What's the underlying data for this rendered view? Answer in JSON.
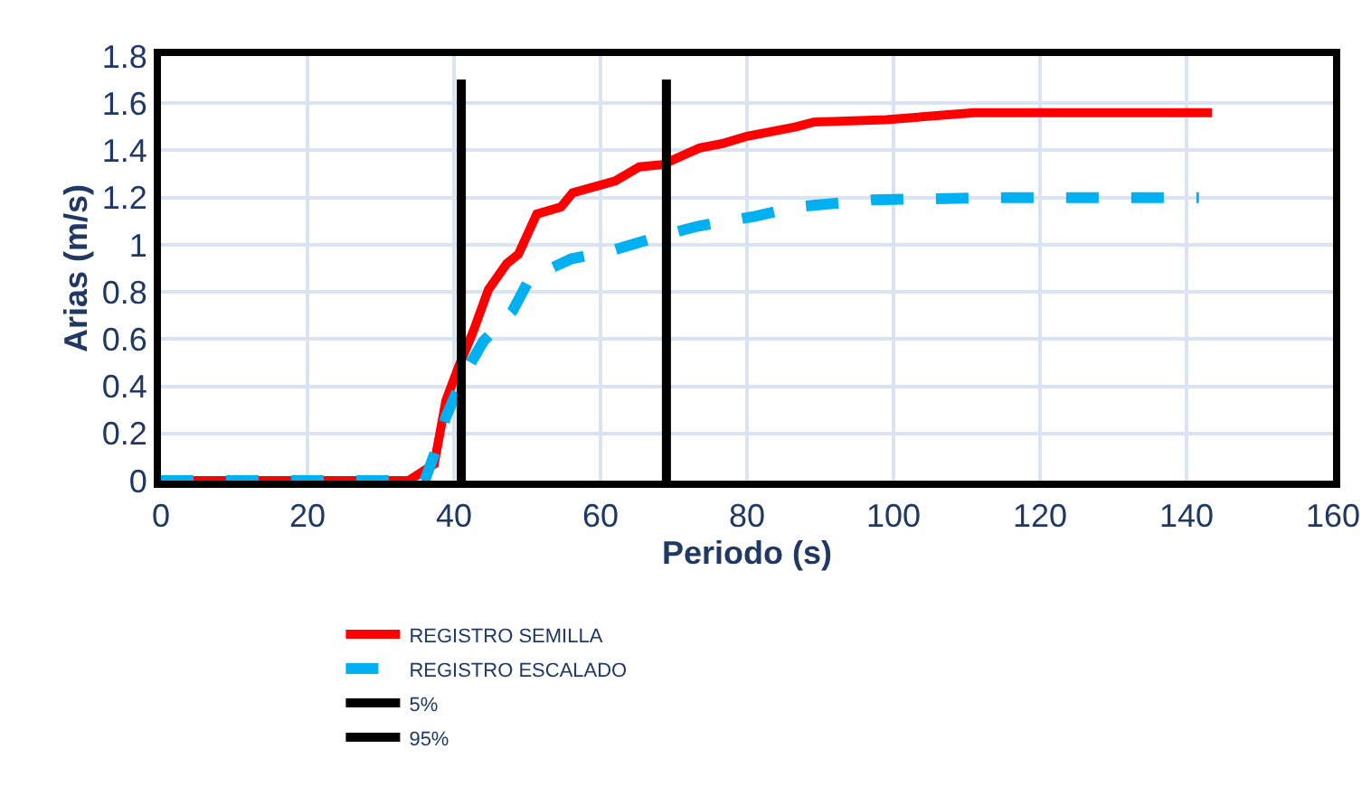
{
  "chart_data": {
    "type": "line",
    "xlabel": "Periodo (s)",
    "ylabel": "Arias (m/s)",
    "xlim": [
      0,
      160
    ],
    "xticks": [
      0,
      20,
      40,
      60,
      80,
      100,
      120,
      140,
      160
    ],
    "ylim": [
      0,
      1.8
    ],
    "yticks": [
      0,
      0.2,
      0.4,
      0.6,
      0.8,
      1,
      1.2,
      1.4,
      1.6,
      1.8
    ],
    "grid": true,
    "legend": "bottom",
    "marker": "none",
    "series": [
      {
        "name": "REGISTRO SEMILLA",
        "color": "#ff0000",
        "line_style": "solid",
        "x": [
          0,
          10,
          20,
          30,
          33.8,
          37.3,
          38.9,
          40.6,
          42.6,
          44.7,
          47.2,
          48.8,
          51.3,
          54.6,
          56.2,
          62,
          65.3,
          68.5,
          73.5,
          76.8,
          80,
          86.7,
          89.1,
          99,
          111,
          143.5
        ],
        "values": [
          0,
          0,
          0,
          0,
          0,
          0.07,
          0.34,
          0.48,
          0.63,
          0.81,
          0.92,
          0.96,
          1.13,
          1.16,
          1.22,
          1.27,
          1.33,
          1.34,
          1.41,
          1.43,
          1.46,
          1.5,
          1.52,
          1.53,
          1.56,
          1.56
        ]
      },
      {
        "name": "REGISTRO ESCALADO",
        "color": "#00b0f0",
        "line_style": "dashed",
        "x": [
          0,
          10,
          20,
          30,
          36,
          37.3,
          38.9,
          41.4,
          44,
          48,
          50.4,
          56,
          62,
          68.5,
          73.5,
          81,
          86.7,
          97,
          114,
          141.7
        ],
        "values": [
          0,
          0,
          0,
          0,
          0,
          0.11,
          0.27,
          0.45,
          0.59,
          0.72,
          0.86,
          0.94,
          0.98,
          1.04,
          1.08,
          1.12,
          1.16,
          1.19,
          1.2,
          1.2
        ]
      },
      {
        "name": "5%",
        "color": "#000000",
        "line_style": "solid",
        "x": [
          41,
          41
        ],
        "values": [
          0,
          1.7
        ]
      },
      {
        "name": "95%",
        "color": "#000000",
        "line_style": "solid",
        "x": [
          69,
          69
        ],
        "values": [
          0,
          1.7
        ]
      }
    ]
  }
}
